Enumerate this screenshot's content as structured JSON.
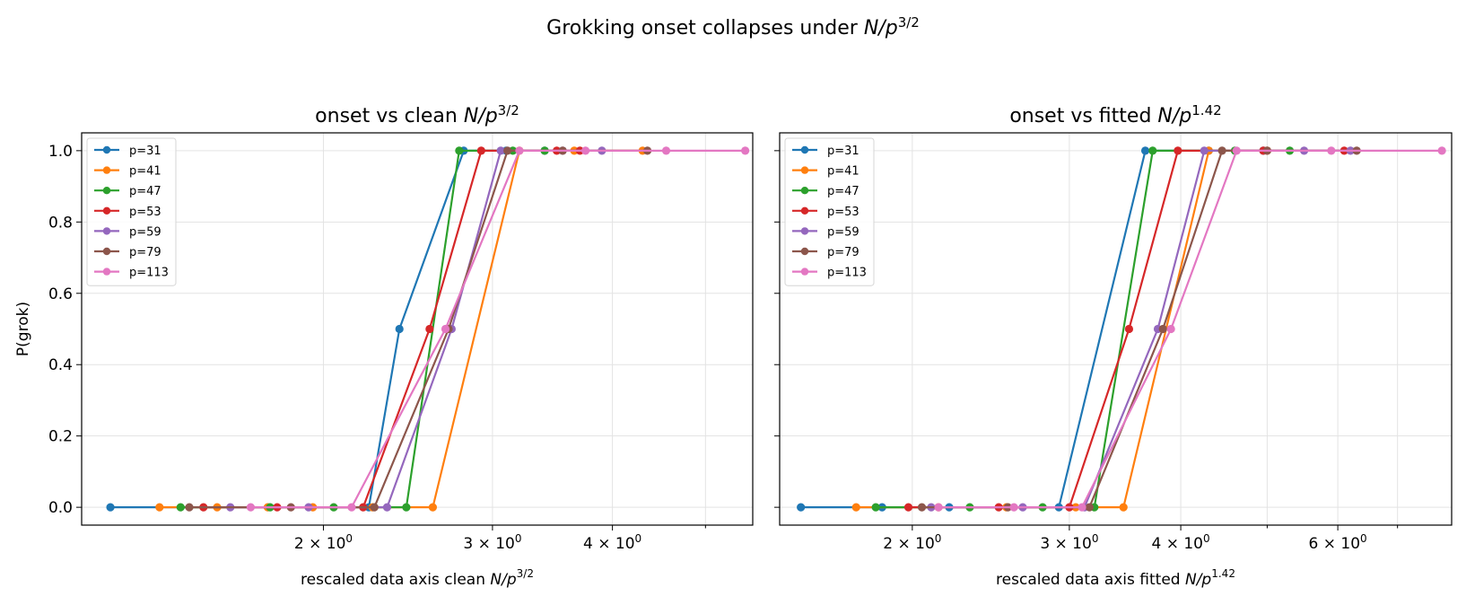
{
  "figure": {
    "suptitle": {
      "text": "Grokking onset collapses under ",
      "var": "N/p",
      "sup": "3/2"
    }
  },
  "colors": {
    "p=31": "#1f77b4",
    "p=41": "#ff7f0e",
    "p=47": "#2ca02c",
    "p=53": "#d62728",
    "p=59": "#9467bd",
    "p=79": "#8c564b",
    "p=113": "#e377c2"
  },
  "chart_data": [
    {
      "type": "line",
      "title": {
        "text": "onset vs clean ",
        "var": "N/p",
        "sup": "3/2"
      },
      "xlabel": {
        "text": "rescaled data axis  clean ",
        "var": "N/p",
        "sup": "3/2"
      },
      "ylabel": "P(grok)",
      "xscale": "log",
      "xlim": [
        1.12,
        5.6
      ],
      "ylim": [
        -0.05,
        1.05
      ],
      "xticks": [
        {
          "value": 2,
          "label": "2 × 10",
          "exp": "0"
        },
        {
          "value": 3,
          "label": "3 × 10",
          "exp": "0"
        },
        {
          "value": 4,
          "label": "4 × 10",
          "exp": "0"
        }
      ],
      "minor_xticks": [
        5
      ],
      "yticks": [
        "0.0",
        "0.2",
        "0.4",
        "0.6",
        "0.8",
        "1.0"
      ],
      "grid": true,
      "legend": "top-left",
      "series": [
        {
          "name": "p=31",
          "x": [
            1.2,
            2.23,
            2.4,
            2.8,
            3.1,
            3.4
          ],
          "y": [
            0,
            0,
            0.5,
            1,
            1,
            1
          ]
        },
        {
          "name": "p=41",
          "x": [
            1.35,
            1.55,
            1.75,
            1.95,
            2.25,
            2.6,
            3.2,
            3.65,
            4.3
          ],
          "y": [
            0,
            0,
            0,
            0,
            0,
            0,
            1,
            1,
            1
          ]
        },
        {
          "name": "p=47",
          "x": [
            1.42,
            1.76,
            2.05,
            2.44,
            2.77,
            3.15,
            3.4
          ],
          "y": [
            0,
            0,
            0,
            0,
            1,
            1,
            1
          ]
        },
        {
          "name": "p=53",
          "x": [
            1.5,
            1.79,
            2.2,
            2.58,
            2.92,
            3.5,
            3.7
          ],
          "y": [
            0,
            0,
            0,
            0.5,
            1,
            1,
            1
          ]
        },
        {
          "name": "p=59",
          "x": [
            1.6,
            1.93,
            2.33,
            2.72,
            3.06,
            3.55,
            3.9
          ],
          "y": [
            0,
            0,
            0,
            0.5,
            1,
            1,
            1
          ]
        },
        {
          "name": "p=79",
          "x": [
            1.45,
            1.85,
            2.26,
            2.7,
            3.11,
            3.55,
            4.35
          ],
          "y": [
            0,
            0,
            0,
            0.5,
            1,
            1,
            1
          ]
        },
        {
          "name": "p=113",
          "x": [
            1.68,
            2.14,
            2.68,
            3.2,
            3.75,
            4.55,
            5.5
          ],
          "y": [
            0,
            0,
            0.5,
            1,
            1,
            1,
            1
          ]
        }
      ]
    },
    {
      "type": "line",
      "title": {
        "text": "onset vs fitted ",
        "var": "N/p",
        "sup": "1.42"
      },
      "xlabel": {
        "text": "rescaled data axis  fitted ",
        "var": "N/p",
        "sup": "1.42"
      },
      "ylabel": "",
      "xscale": "log",
      "xlim": [
        1.42,
        8.05
      ],
      "ylim": [
        -0.05,
        1.05
      ],
      "xticks": [
        {
          "value": 2,
          "label": "2 × 10",
          "exp": "0"
        },
        {
          "value": 3,
          "label": "3 × 10",
          "exp": "0"
        },
        {
          "value": 4,
          "label": "4 × 10",
          "exp": "0"
        },
        {
          "value": 6,
          "label": "6 × 10",
          "exp": "0"
        }
      ],
      "minor_xticks": [
        5,
        7
      ],
      "yticks": [
        "0.0",
        "0.2",
        "0.4",
        "0.6",
        "0.8",
        "1.0"
      ],
      "grid": true,
      "legend": "top-left",
      "series": [
        {
          "name": "p=31",
          "x": [
            1.5,
            1.85,
            2.2,
            2.92,
            3.65,
            4.3,
            4.95
          ],
          "y": [
            0,
            0,
            0,
            0,
            1,
            1,
            1
          ]
        },
        {
          "name": "p=41",
          "x": [
            1.73,
            2.14,
            2.55,
            3.05,
            3.45,
            4.3,
            5.0
          ],
          "y": [
            0,
            0,
            0,
            0,
            0,
            1,
            1
          ]
        },
        {
          "name": "p=47",
          "x": [
            1.82,
            2.32,
            2.8,
            3.2,
            3.72,
            4.6,
            5.3
          ],
          "y": [
            0,
            0,
            0,
            0,
            1,
            1,
            1
          ]
        },
        {
          "name": "p=53",
          "x": [
            1.98,
            2.5,
            3.0,
            3.5,
            3.97,
            4.95,
            6.1
          ],
          "y": [
            0,
            0,
            0,
            0.5,
            1,
            1,
            1
          ]
        },
        {
          "name": "p=59",
          "x": [
            2.1,
            2.66,
            3.12,
            3.77,
            4.25,
            5.5,
            6.2
          ],
          "y": [
            0,
            0,
            0,
            0.5,
            1,
            1,
            1
          ]
        },
        {
          "name": "p=79",
          "x": [
            2.05,
            2.56,
            3.16,
            3.82,
            4.45,
            5.0,
            6.3
          ],
          "y": [
            0,
            0,
            0,
            0.5,
            1,
            1,
            1
          ]
        },
        {
          "name": "p=113",
          "x": [
            2.14,
            2.6,
            3.1,
            3.9,
            4.62,
            5.9,
            7.85
          ],
          "y": [
            0,
            0,
            0,
            0.5,
            1,
            1,
            1
          ]
        }
      ]
    }
  ]
}
